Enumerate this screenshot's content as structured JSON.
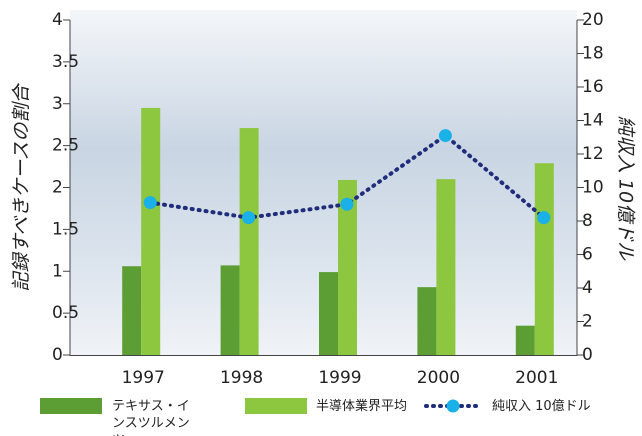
{
  "chart_data": {
    "type": "bar",
    "categories": [
      "1997",
      "1998",
      "1999",
      "2000",
      "2001"
    ],
    "ylabel": "記録すべきケースの割合",
    "y2label": "純収入 10億ドル",
    "ylim": [
      0,
      4
    ],
    "yticks": [
      0,
      0.5,
      1,
      1.5,
      2,
      2.5,
      3,
      3.5,
      4
    ],
    "y2lim": [
      0,
      20
    ],
    "y2ticks": [
      0,
      2,
      4,
      6,
      8,
      10,
      12,
      14,
      16,
      18,
      20
    ],
    "series": [
      {
        "name": "テキサス・インスツルメンツ",
        "color": "#5c9e34",
        "type": "bar",
        "values": [
          1.06,
          1.07,
          0.99,
          0.81,
          0.35
        ]
      },
      {
        "name": "半導体業界平均",
        "color": "#8dc63f",
        "type": "bar",
        "values": [
          2.95,
          2.71,
          2.09,
          2.1,
          2.29
        ]
      },
      {
        "name": "純収入 10億ドル",
        "color": "#1f2d7a",
        "marker_color": "#1ab0e8",
        "type": "line",
        "axis": "y2",
        "values": [
          9.1,
          8.2,
          9.0,
          13.1,
          8.2
        ]
      }
    ]
  }
}
